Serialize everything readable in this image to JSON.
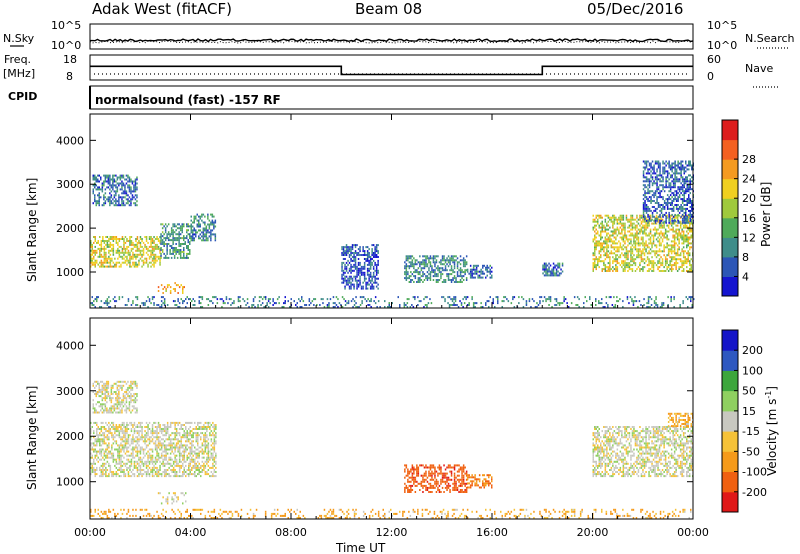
{
  "header": {
    "station": "Adak West (fitACF)",
    "beam": "Beam 08",
    "date": "05/Dec/2016"
  },
  "strips": {
    "nsky_label": "N.Sky",
    "nsky_ticks": [
      "10^5",
      "10^0"
    ],
    "nsearch_label": "N.Search",
    "nsearch_ticks": [
      "10^5",
      "10^0"
    ],
    "freq_label": [
      "Freq.",
      "[MHz]"
    ],
    "freq_ticks": [
      "18",
      "8"
    ],
    "nave_label": "Nave",
    "nave_ticks": [
      "60",
      "0"
    ],
    "cpid_label": "CPID",
    "cpid_text": "normalsound (fast) -157 RF"
  },
  "panels": {
    "ylabel": "Slant Range [km]",
    "yticks": [
      "1000",
      "2000",
      "3000",
      "4000"
    ],
    "xticks": [
      "00:00",
      "04:00",
      "08:00",
      "12:00",
      "16:00",
      "20:00",
      "00:00"
    ],
    "xlabel": "Time UT",
    "power_cbar_label": "Power [dB]",
    "power_cbar_ticks": [
      "4",
      "8",
      "12",
      "16",
      "20",
      "24",
      "28"
    ],
    "velocity_cbar_label": "Velocity [m s",
    "velocity_cbar_label_sup": "-1",
    "velocity_cbar_label_end": "]",
    "velocity_cbar_ticks": [
      "200",
      "100",
      "50",
      "15",
      "-15",
      "-50",
      "-100",
      "-200"
    ]
  },
  "chart_data": [
    {
      "type": "line",
      "name": "frequency",
      "x_hours": [
        0,
        10,
        10,
        18,
        18,
        24
      ],
      "y_mhz": [
        13.5,
        13.5,
        10.2,
        10.2,
        13.5,
        13.5
      ],
      "ylim": [
        8,
        18
      ]
    },
    {
      "type": "heatmap",
      "name": "power",
      "x_unit": "hours UT",
      "y_unit": "km",
      "xlim": [
        0,
        24
      ],
      "ylim": [
        180,
        4600
      ],
      "clim": [
        0,
        32
      ],
      "colors": [
        "#1515d0",
        "#2c56b6",
        "#3f8d8a",
        "#4faa5a",
        "#9fc93c",
        "#f0d020",
        "#f49a20",
        "#f46020",
        "#dd1c1c"
      ],
      "regions": [
        {
          "t0": 0.0,
          "t1": 2.8,
          "r0": 1100,
          "r1": 1800,
          "p": 18
        },
        {
          "t0": 2.8,
          "t1": 4.0,
          "r0": 1300,
          "r1": 2100,
          "p": 10
        },
        {
          "t0": 4.0,
          "t1": 5.0,
          "r0": 1700,
          "r1": 2300,
          "p": 8
        },
        {
          "t0": 0.1,
          "t1": 1.9,
          "r0": 2500,
          "r1": 3200,
          "p": 7
        },
        {
          "t0": 2.7,
          "t1": 3.8,
          "r0": 500,
          "r1": 750,
          "p": 22
        },
        {
          "t0": 10.0,
          "t1": 11.5,
          "r0": 600,
          "r1": 1600,
          "p": 5
        },
        {
          "t0": 12.5,
          "t1": 15.0,
          "r0": 750,
          "r1": 1350,
          "p": 9
        },
        {
          "t0": 15.0,
          "t1": 16.0,
          "r0": 850,
          "r1": 1150,
          "p": 6
        },
        {
          "t0": 18.0,
          "t1": 18.8,
          "r0": 900,
          "r1": 1200,
          "p": 7
        },
        {
          "t0": 20.0,
          "t1": 24.0,
          "r0": 1000,
          "r1": 2300,
          "p": 18
        },
        {
          "t0": 22.0,
          "t1": 24.0,
          "r0": 2100,
          "r1": 3500,
          "p": 6
        },
        {
          "t0": 0.0,
          "t1": 24.0,
          "r0": 180,
          "r1": 420,
          "p": 8
        }
      ]
    },
    {
      "type": "heatmap",
      "name": "velocity",
      "x_unit": "hours UT",
      "y_unit": "km",
      "xlim": [
        0,
        24
      ],
      "ylim": [
        180,
        4600
      ],
      "clim": [
        -250,
        250
      ],
      "colors": [
        "#e01818",
        "#f06010",
        "#f59a1a",
        "#f5c238",
        "#c8c8c0",
        "#8fd060",
        "#3ca63c",
        "#2e58c0",
        "#1414c8"
      ],
      "regions": [
        {
          "t0": 0.0,
          "t1": 5.0,
          "r0": 1100,
          "r1": 2300,
          "v": 0
        },
        {
          "t0": 0.1,
          "t1": 1.9,
          "r0": 2500,
          "r1": 3200,
          "v": 0
        },
        {
          "t0": 2.7,
          "t1": 3.8,
          "r0": 500,
          "r1": 750,
          "v": 0
        },
        {
          "t0": 12.5,
          "t1": 15.0,
          "r0": 750,
          "r1": 1350,
          "v": -130
        },
        {
          "t0": 15.0,
          "t1": 16.0,
          "r0": 850,
          "r1": 1150,
          "v": -80
        },
        {
          "t0": 20.0,
          "t1": 24.0,
          "r0": 1100,
          "r1": 2200,
          "v": 0
        },
        {
          "t0": 23.0,
          "t1": 24.0,
          "r0": 2200,
          "r1": 2500,
          "v": -40
        },
        {
          "t0": 0.0,
          "t1": 24.0,
          "r0": 180,
          "r1": 400,
          "v": -40
        }
      ]
    }
  ]
}
